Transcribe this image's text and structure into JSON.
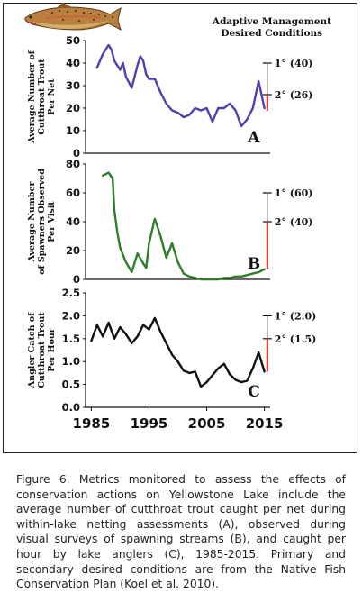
{
  "header": {
    "title_line1": "Adaptive Management",
    "title_line2": "Desired Conditions"
  },
  "chart_data": [
    {
      "id": "A",
      "type": "line",
      "panel_letter": "A",
      "ylabel_lines": [
        "Average Number of",
        "Cutthroat Trout",
        "Per Net"
      ],
      "ylim": [
        0,
        50
      ],
      "yticks": [
        "0",
        "10",
        "20",
        "30",
        "40",
        "50"
      ],
      "line_color": "#4f3fb0",
      "x": [
        1986,
        1987,
        1988,
        1988.5,
        1989,
        1990,
        1990.5,
        1991,
        1992,
        1993,
        1993.5,
        1994,
        1994.5,
        1995,
        1996,
        1997,
        1998,
        1999,
        2000,
        2001,
        2002,
        2003,
        2004,
        2005,
        2006,
        2007,
        2008,
        2009,
        2010,
        2011,
        2012,
        2013,
        2014,
        2015
      ],
      "y": [
        38,
        44,
        48,
        46,
        41,
        37,
        40,
        34,
        29,
        39,
        43,
        41,
        35,
        33,
        33,
        27,
        22,
        19,
        18,
        16,
        17,
        20,
        19,
        20,
        14,
        20,
        20,
        22,
        19,
        12,
        15,
        20,
        32,
        20
      ],
      "targets": [
        {
          "label": "1° (40)",
          "value": 40
        },
        {
          "label": "2° (26)",
          "value": 26
        }
      ]
    },
    {
      "id": "B",
      "type": "line",
      "panel_letter": "B",
      "ylabel_lines": [
        "Average Number",
        "of Spawners Observed",
        "Per Visit"
      ],
      "ylim": [
        0,
        80
      ],
      "yticks": [
        "0",
        "20",
        "40",
        "60",
        "80"
      ],
      "line_color": "#2e7d2a",
      "x": [
        1987,
        1988,
        1988.7,
        1989,
        1989.5,
        1990,
        1991,
        1992,
        1993,
        1994,
        1994.5,
        1995,
        1996,
        1997,
        1998,
        1999,
        2000,
        2001,
        2002,
        2003,
        2004,
        2005,
        2006,
        2007,
        2008,
        2009,
        2010,
        2011,
        2012,
        2013,
        2014,
        2015
      ],
      "y": [
        72,
        74,
        70,
        48,
        33,
        22,
        12,
        5,
        18,
        11,
        8,
        25,
        42,
        30,
        15,
        25,
        12,
        4,
        2,
        1,
        0,
        0,
        0,
        0,
        1,
        1,
        2,
        2,
        3,
        4,
        5,
        7
      ],
      "targets": [
        {
          "label": "1° (60)",
          "value": 60
        },
        {
          "label": "2° (40)",
          "value": 40
        }
      ]
    },
    {
      "id": "C",
      "type": "line",
      "panel_letter": "C",
      "ylabel_lines": [
        "Angler Catch of",
        "Cutthroat Trout",
        "Per Hour"
      ],
      "ylim": [
        0,
        2.5
      ],
      "yticks": [
        "0.0",
        "0.5",
        "1.0",
        "1.5",
        "2.0",
        "2.5"
      ],
      "line_color": "#111111",
      "x": [
        1985,
        1986,
        1987,
        1988,
        1989,
        1990,
        1991,
        1992,
        1993,
        1994,
        1995,
        1996,
        1997,
        1998,
        1999,
        2000,
        2001,
        2002,
        2003,
        2004,
        2005,
        2006,
        2007,
        2008,
        2009,
        2010,
        2011,
        2012,
        2013,
        2014,
        2015
      ],
      "y": [
        1.45,
        1.8,
        1.55,
        1.85,
        1.5,
        1.75,
        1.6,
        1.4,
        1.55,
        1.8,
        1.7,
        1.95,
        1.65,
        1.4,
        1.15,
        1.0,
        0.8,
        0.75,
        0.78,
        0.45,
        0.55,
        0.7,
        0.85,
        0.95,
        0.72,
        0.6,
        0.55,
        0.58,
        0.85,
        1.2,
        0.78
      ],
      "targets": [
        {
          "label": "1° (2.0)",
          "value": 2.0
        },
        {
          "label": "2° (1.5)",
          "value": 1.5
        }
      ]
    }
  ],
  "x_axis": {
    "ticks": [
      "1985",
      "1995",
      "2005",
      "2015"
    ],
    "values": [
      1985,
      1995,
      2005,
      2015
    ],
    "xlim": [
      1984,
      2016
    ]
  },
  "caption": "Figure 6. Metrics monitored to assess the effects of conservation actions on Yellowstone Lake include the average number of cutthroat trout caught per net during within-lake netting assessments (A), observed during visual surveys of spawning streams (B), and caught per hour by lake anglers (C), 1985-2015. Primary and secondary desired conditions are from the Native Fish Conservation Plan (Koel et al. 2010)."
}
